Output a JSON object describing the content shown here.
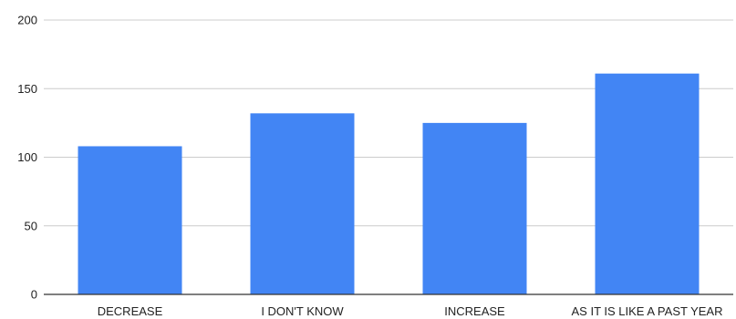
{
  "chart_data": {
    "type": "bar",
    "title": "",
    "xlabel": "",
    "ylabel": "",
    "categories": [
      "DECREASE",
      "I DON'T KNOW",
      "INCREASE",
      "AS IT IS LIKE A PAST YEAR"
    ],
    "values": [
      108,
      132,
      125,
      161
    ],
    "ylim": [
      0,
      200
    ],
    "yticks": [
      0,
      50,
      100,
      150,
      200
    ],
    "grid": true,
    "legend": "none",
    "colors": {
      "bar": "#4285f4",
      "grid": "#cccccc",
      "axis": "#333333",
      "text": "#222222"
    }
  }
}
